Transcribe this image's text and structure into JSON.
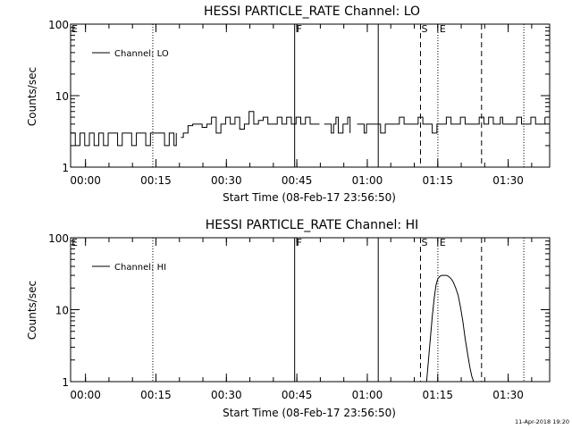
{
  "footer": {
    "timestamp": "11-Apr-2018 19:20"
  },
  "chart_data": [
    {
      "type": "line",
      "title": "HESSI PARTICLE_RATE Channel: LO",
      "xlabel": "Start Time (08-Feb-17 23:56:50)",
      "ylabel": "Counts/sec",
      "yscale": "log",
      "ylim": [
        1,
        100
      ],
      "xlim": [
        0,
        102
      ],
      "xunit": "minutes since start time",
      "x_tick_labels": [
        "00:00",
        "00:15",
        "00:30",
        "00:45",
        "01:00",
        "01:15",
        "01:30"
      ],
      "y_tick_labels": [
        "1",
        "10",
        "100"
      ],
      "legend": {
        "label": "Channel: LO",
        "position": "top-left"
      },
      "series": [
        {
          "name": "Channel: LO",
          "segments": [
            {
              "x": [
                0,
                1,
                2,
                3,
                4,
                5,
                6,
                7,
                8,
                9,
                10,
                11,
                12,
                13,
                14,
                15,
                16,
                17,
                18,
                19,
                20,
                21,
                22,
                22.5
              ],
              "y": [
                3,
                2,
                3,
                2,
                3,
                2,
                3,
                2,
                3,
                3,
                2,
                3,
                3,
                2,
                3,
                3,
                2,
                3,
                3,
                3,
                2,
                3,
                2,
                3
              ]
            },
            {
              "x": [
                23.5,
                24,
                25,
                26,
                27,
                28,
                29,
                30,
                31,
                32,
                33,
                34,
                35,
                36,
                37,
                38,
                39,
                40,
                41,
                42,
                43,
                44,
                45,
                46,
                47,
                48,
                49,
                50,
                51,
                52,
                53
              ],
              "y": [
                2.6,
                3,
                3.8,
                4,
                4,
                3.6,
                4,
                5,
                3,
                4,
                5,
                4,
                5,
                3.4,
                4,
                6,
                4,
                4.5,
                5,
                4,
                4,
                5,
                4,
                5,
                4,
                5,
                4,
                5,
                4,
                4,
                4
              ]
            },
            {
              "x": [
                54,
                55,
                55.5,
                56,
                56.5,
                57,
                58,
                59,
                59.5
              ],
              "y": [
                4,
                4,
                3,
                4,
                5,
                3,
                4,
                5,
                3
              ]
            },
            {
              "x": [
                61,
                62,
                62.5,
                63,
                64,
                65,
                66,
                67,
                68,
                69,
                70,
                71,
                72,
                73,
                74,
                75,
                76,
                77,
                78,
                79,
                80,
                81,
                82,
                83,
                84,
                85,
                86,
                87,
                88,
                89,
                90,
                91,
                91.5,
                92
              ],
              "y": [
                4,
                4,
                3,
                4,
                4,
                4,
                3,
                4,
                4,
                4,
                5,
                4,
                4,
                4,
                5,
                4,
                4,
                3,
                4,
                4,
                5,
                4,
                4,
                5,
                4,
                4,
                4,
                5,
                4,
                5,
                4,
                4,
                5,
                4
              ]
            },
            {
              "x": [
                92,
                93,
                94,
                95,
                96,
                97,
                98,
                99,
                100,
                101
              ],
              "y": [
                4,
                4,
                4,
                5,
                4,
                4,
                5,
                4,
                4,
                5
              ]
            }
          ]
        }
      ],
      "markers": [
        {
          "label": "E",
          "x": 0,
          "style": "none"
        },
        {
          "label": "",
          "x": 17.5,
          "style": "dotted"
        },
        {
          "label": "F",
          "x": 47.7,
          "style": "solid"
        },
        {
          "label": "",
          "x": 65.5,
          "style": "solid"
        },
        {
          "label": "S",
          "x": 74.5,
          "style": "dashed"
        },
        {
          "label": "E",
          "x": 78.2,
          "style": "dotted"
        },
        {
          "label": "",
          "x": 87.5,
          "style": "dashed"
        },
        {
          "label": "",
          "x": 96.5,
          "style": "dotted"
        }
      ]
    },
    {
      "type": "line",
      "title": "HESSI PARTICLE_RATE Channel: HI",
      "xlabel": "Start Time (08-Feb-17 23:56:50)",
      "ylabel": "Counts/sec",
      "yscale": "log",
      "ylim": [
        1,
        100
      ],
      "xlim": [
        0,
        102
      ],
      "xunit": "minutes since start time",
      "x_tick_labels": [
        "00:00",
        "00:15",
        "00:30",
        "00:45",
        "01:00",
        "01:15",
        "01:30"
      ],
      "y_tick_labels": [
        "1",
        "10",
        "100"
      ],
      "legend": {
        "label": "Channel: HI",
        "position": "top-left"
      },
      "series": [
        {
          "name": "Channel: HI",
          "segments": [
            {
              "x": [
                75.8,
                76.2,
                76.6,
                77.0,
                77.4,
                77.8,
                78.2,
                78.6,
                79.0,
                79.5,
                80.0,
                80.5,
                81.0,
                81.5,
                82.0,
                82.5,
                83.0,
                83.5,
                84.0,
                84.5,
                85.0,
                85.4,
                85.8
              ],
              "y": [
                1,
                2,
                4,
                8,
                14,
                22,
                27,
                29,
                30,
                30,
                30,
                29,
                27,
                24,
                20,
                16,
                11,
                7,
                4,
                2.5,
                1.6,
                1.2,
                1
              ]
            }
          ]
        }
      ],
      "markers": [
        {
          "label": "E",
          "x": 0,
          "style": "none"
        },
        {
          "label": "",
          "x": 17.5,
          "style": "dotted"
        },
        {
          "label": "F",
          "x": 47.7,
          "style": "solid"
        },
        {
          "label": "",
          "x": 65.5,
          "style": "solid"
        },
        {
          "label": "S",
          "x": 74.5,
          "style": "dashed"
        },
        {
          "label": "E",
          "x": 78.2,
          "style": "dotted"
        },
        {
          "label": "",
          "x": 87.5,
          "style": "dashed"
        },
        {
          "label": "",
          "x": 96.5,
          "style": "dotted"
        }
      ]
    }
  ]
}
